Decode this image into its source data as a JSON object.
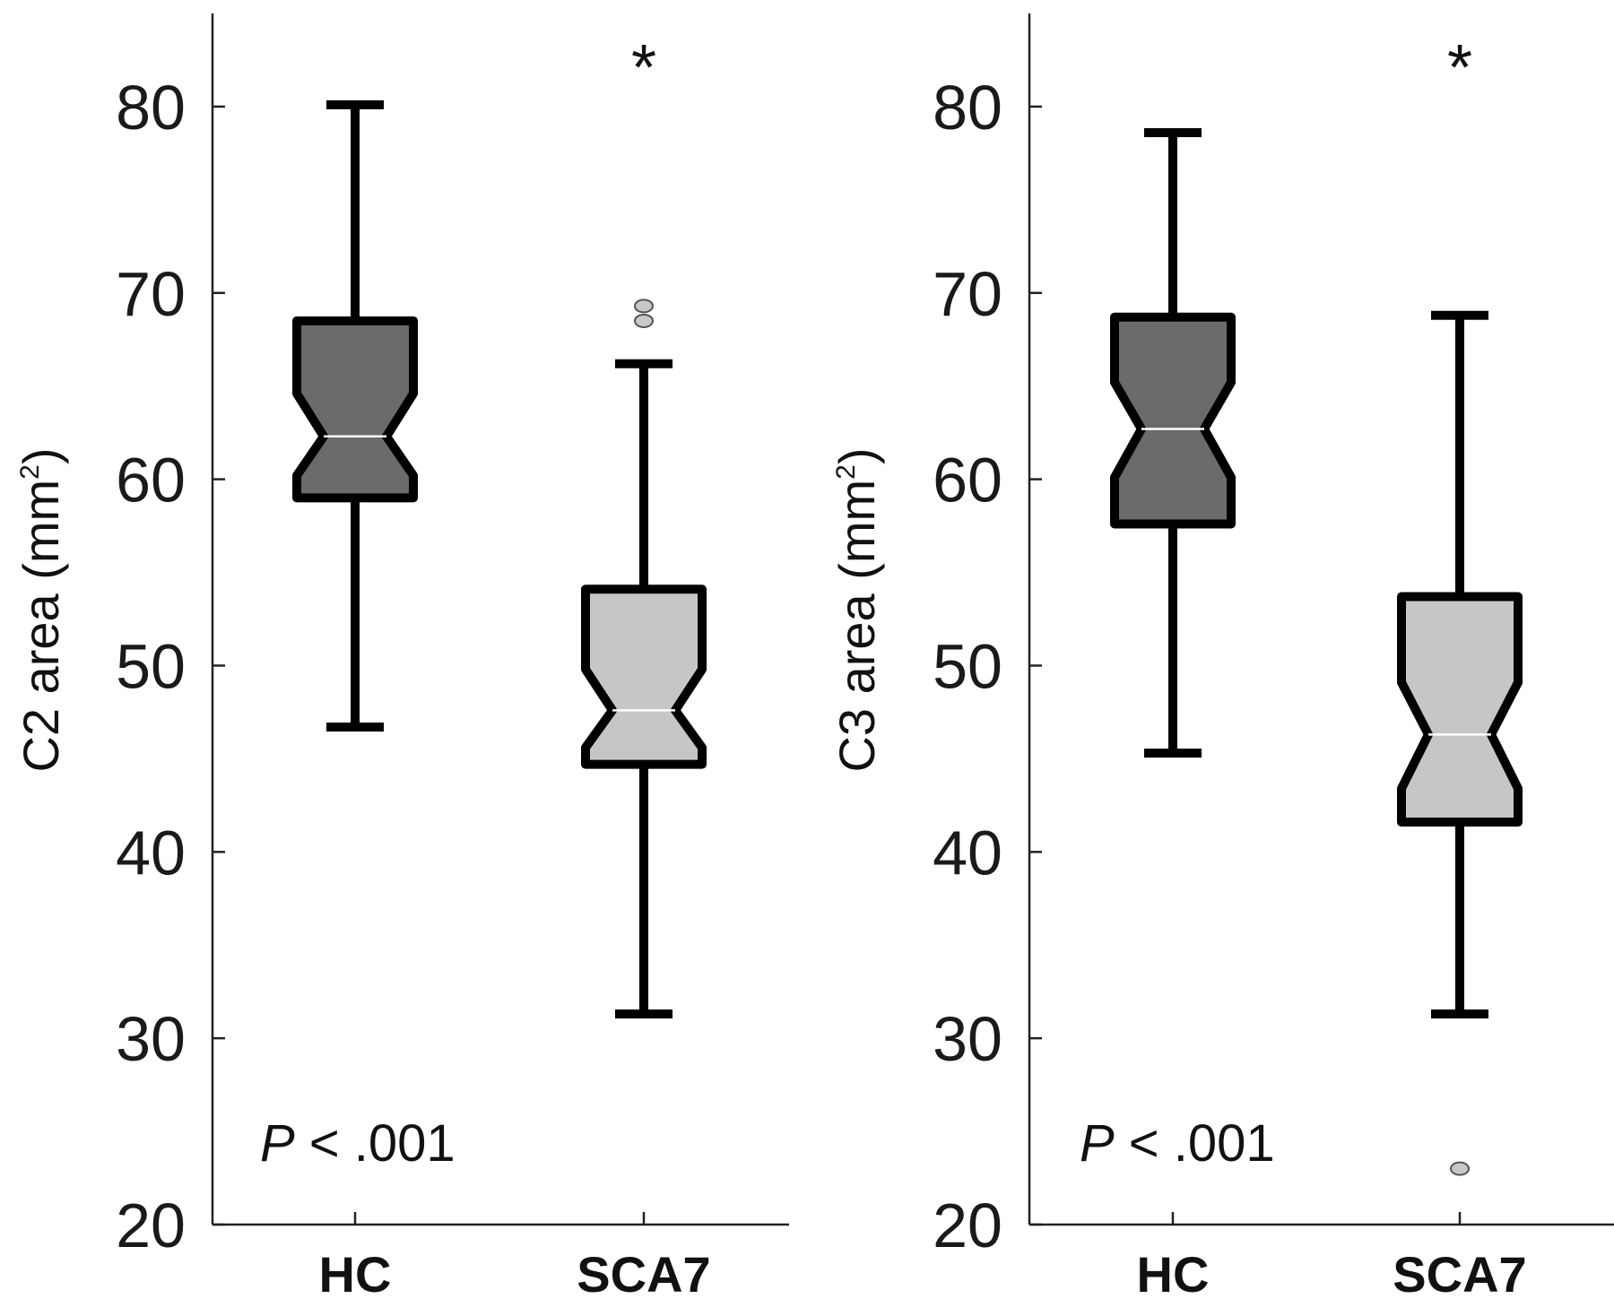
{
  "chart_data": [
    {
      "type": "boxplot",
      "notched": true,
      "ylabel": "C2 area (mm",
      "ylabel_sup": "2",
      "ylabel_close": ")",
      "ylim": [
        20,
        85
      ],
      "yticks": [
        20,
        30,
        40,
        50,
        60,
        70,
        80
      ],
      "categories": [
        "HC",
        "SCA7"
      ],
      "boxes": [
        {
          "whisker_low": 46.7,
          "q1": 59.0,
          "notch_low": 60.2,
          "median": 62.3,
          "notch_high": 64.6,
          "q3": 68.5,
          "whisker_high": 80.1,
          "fill": "#6b6b6b",
          "outliers": []
        },
        {
          "whisker_low": 31.3,
          "q1": 44.7,
          "notch_low": 45.6,
          "median": 47.6,
          "notch_high": 49.8,
          "q3": 54.1,
          "whisker_high": 66.2,
          "fill": "#c6c6c6",
          "outliers": [
            68.5,
            69.3
          ],
          "significance": "*"
        }
      ],
      "annotation_p": "P",
      "annotation_rest": " < .001"
    },
    {
      "type": "boxplot",
      "notched": true,
      "ylabel": "C3 area (mm",
      "ylabel_sup": "2",
      "ylabel_close": ")",
      "ylim": [
        20,
        85
      ],
      "yticks": [
        20,
        30,
        40,
        50,
        60,
        70,
        80
      ],
      "categories": [
        "HC",
        "SCA7"
      ],
      "boxes": [
        {
          "whisker_low": 45.3,
          "q1": 57.6,
          "notch_low": 60.1,
          "median": 62.7,
          "notch_high": 65.2,
          "q3": 68.7,
          "whisker_high": 78.6,
          "fill": "#6b6b6b",
          "outliers": []
        },
        {
          "whisker_low": 31.3,
          "q1": 41.6,
          "notch_low": 43.4,
          "median": 46.3,
          "notch_high": 49.1,
          "q3": 53.7,
          "whisker_high": 68.8,
          "fill": "#c6c6c6",
          "outliers": [
            23.0
          ],
          "significance": "*"
        }
      ],
      "annotation_p": "P",
      "annotation_rest": " < .001"
    }
  ]
}
